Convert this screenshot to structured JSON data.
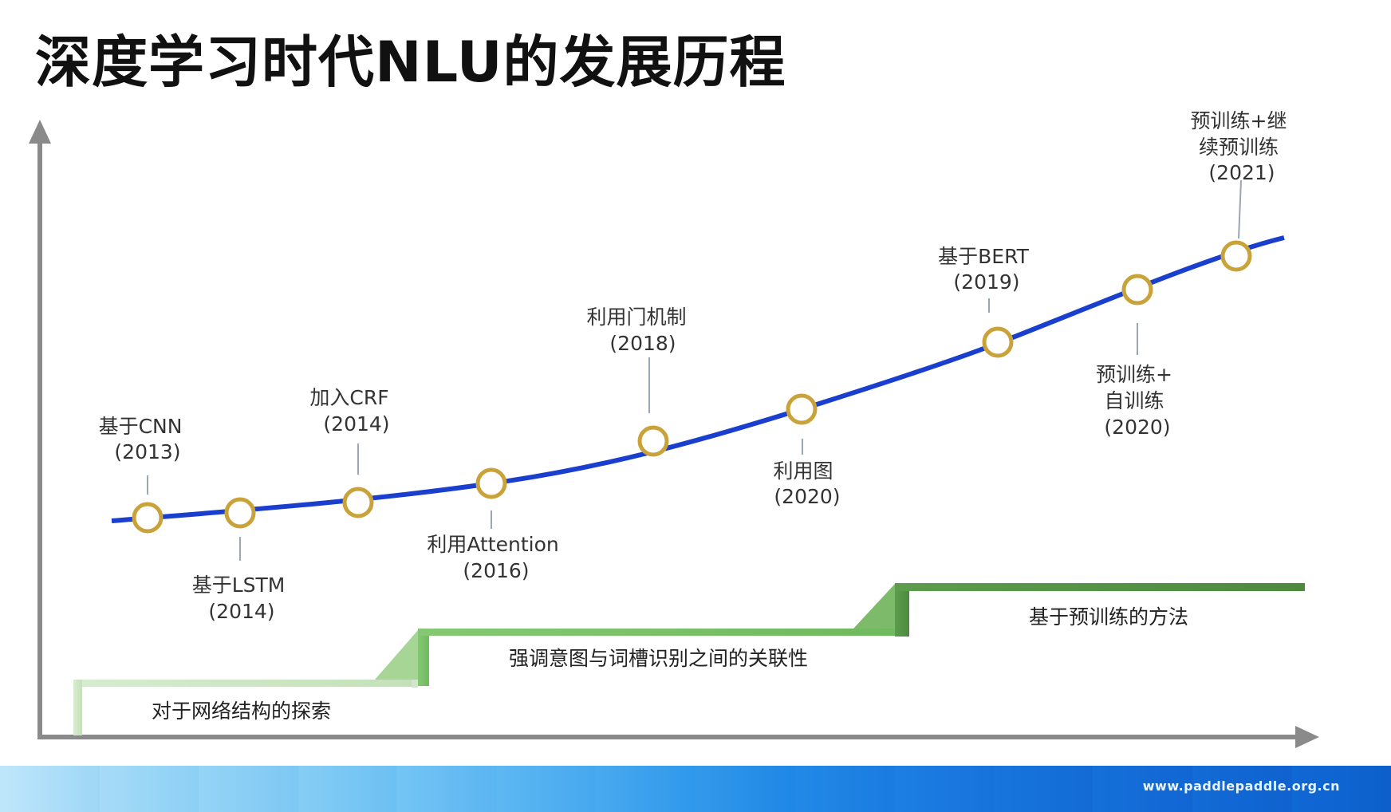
{
  "title": "深度学习时代NLU的发展历程",
  "milestones": [
    {
      "lines": [
        "基于CNN",
        "(2013)"
      ]
    },
    {
      "lines": [
        "基于LSTM",
        "(2014)"
      ]
    },
    {
      "lines": [
        "加入CRF",
        "(2014)"
      ]
    },
    {
      "lines": [
        "利用Attention",
        "(2016)"
      ]
    },
    {
      "lines": [
        "利用门机制",
        "(2018)"
      ]
    },
    {
      "lines": [
        "利用图",
        "(2020)"
      ]
    },
    {
      "lines": [
        "基于BERT",
        "(2019)"
      ]
    },
    {
      "lines": [
        "预训练+",
        "自训练",
        "(2020)"
      ]
    },
    {
      "lines": [
        "预训练+继",
        "续预训练",
        "(2021)"
      ]
    }
  ],
  "stages": [
    {
      "label": "对于网络结构的探索"
    },
    {
      "label": "强调意图与词槽识别之间的关联性"
    },
    {
      "label": "基于预训练的方法"
    }
  ],
  "colors": {
    "curve": "#1a3fcf",
    "node_ring": "#c9a23a",
    "axis": "#8a8a8a",
    "stage1": "#cfe7c8",
    "stage2": "#79c069",
    "stage3": "#4f8f3f"
  },
  "footer": {
    "url": "www.paddlepaddle.org.cn"
  }
}
